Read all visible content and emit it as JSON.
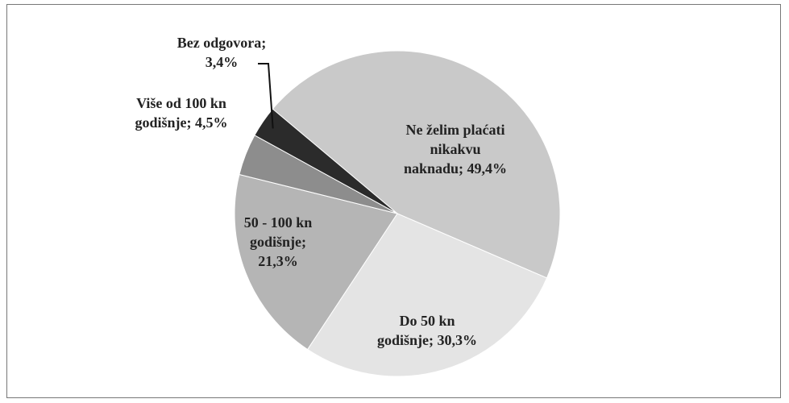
{
  "chart_data": {
    "type": "pie",
    "categories": [
      "Ne želim plaćati nikakvu naknadu;",
      "Do 50 kn godišnje;",
      "50 - 100 kn godišnje;",
      "Više od 100 kn godišnje;",
      "Bez odgovora;"
    ],
    "values": [
      49.4,
      30.3,
      21.3,
      4.5,
      3.4
    ],
    "value_labels": [
      "49,4%",
      "30,3%",
      "21,3%",
      "4,5%",
      "3,4%"
    ],
    "colors": [
      "#c9c9c9",
      "#e4e4e4",
      "#b5b5b5",
      "#8d8d8d",
      "#2b2b2b"
    ]
  }
}
